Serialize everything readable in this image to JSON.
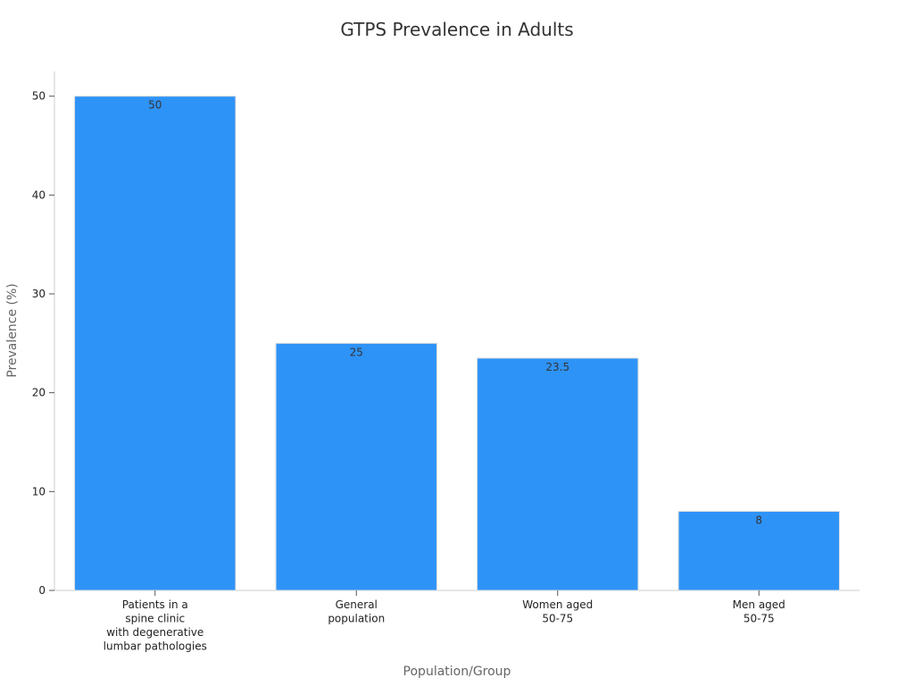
{
  "chart_data": {
    "type": "bar",
    "title": "GTPS Prevalence in Adults",
    "xlabel": "Population/Group",
    "ylabel": "Prevalence (%)",
    "categories": [
      [
        "Patients in a",
        "spine clinic",
        "with degenerative",
        "lumbar pathologies"
      ],
      [
        "General",
        "population"
      ],
      [
        "Women aged",
        "50-75"
      ],
      [
        "Men aged",
        "50-75"
      ]
    ],
    "values": [
      50,
      25,
      23.5,
      8
    ],
    "data_labels": [
      "50",
      "25",
      "23.5",
      "8"
    ],
    "ylim": [
      0,
      52.5
    ],
    "yticks": [
      0,
      10,
      20,
      30,
      40,
      50
    ],
    "bar_color": "#2e93f7",
    "grid": false,
    "legend": "none"
  }
}
